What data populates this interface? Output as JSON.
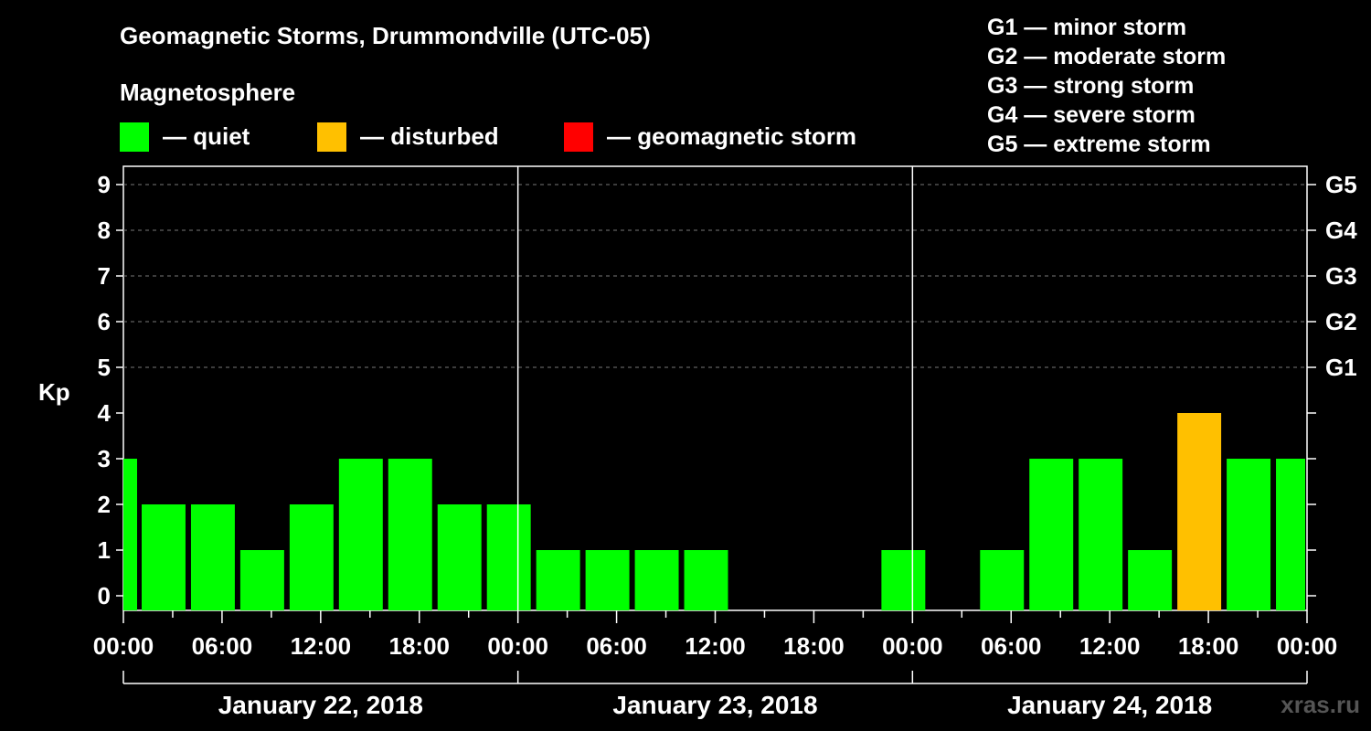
{
  "title": "Geomagnetic Storms, Drummondville (UTC-05)",
  "subtitle": "Magnetosphere",
  "legend": [
    {
      "label": "— quiet",
      "color": "#00ff00"
    },
    {
      "label": "— disturbed",
      "color": "#ffc000"
    },
    {
      "label": "— geomagnetic storm",
      "color": "#ff0000"
    }
  ],
  "g_levels": [
    "G1 — minor storm",
    "G2 — moderate storm",
    "G3 — strong storm",
    "G4 — severe storm",
    "G5 — extreme storm"
  ],
  "watermark": "xras.ru",
  "chart_data": {
    "type": "bar",
    "ylabel": "Kp",
    "ylim": [
      0,
      9
    ],
    "yticks": [
      "0",
      "1",
      "2",
      "3",
      "4",
      "5",
      "6",
      "7",
      "8",
      "9"
    ],
    "right_axis_labels": [
      {
        "kp": 5,
        "label": "G1"
      },
      {
        "kp": 6,
        "label": "G2"
      },
      {
        "kp": 7,
        "label": "G3"
      },
      {
        "kp": 8,
        "label": "G4"
      },
      {
        "kp": 9,
        "label": "G5"
      }
    ],
    "xtick_labels": [
      "00:00",
      "06:00",
      "12:00",
      "18:00",
      "00:00",
      "06:00",
      "12:00",
      "18:00",
      "00:00",
      "06:00",
      "12:00",
      "18:00",
      "00:00"
    ],
    "days": [
      "January 22, 2018",
      "January 23, 2018",
      "January 24, 2018"
    ],
    "interval_hours": 3,
    "values": [
      3,
      2,
      2,
      1,
      2,
      3,
      3,
      2,
      2,
      1,
      1,
      1,
      1,
      0,
      0,
      0,
      1,
      0,
      1,
      3,
      3,
      1,
      4,
      3,
      3
    ],
    "colors": {
      "quiet": "#00ff00",
      "disturbed": "#ffc000",
      "storm": "#ff0000"
    },
    "thresholds": {
      "disturbed": 4,
      "storm": 5
    },
    "grid": true
  }
}
